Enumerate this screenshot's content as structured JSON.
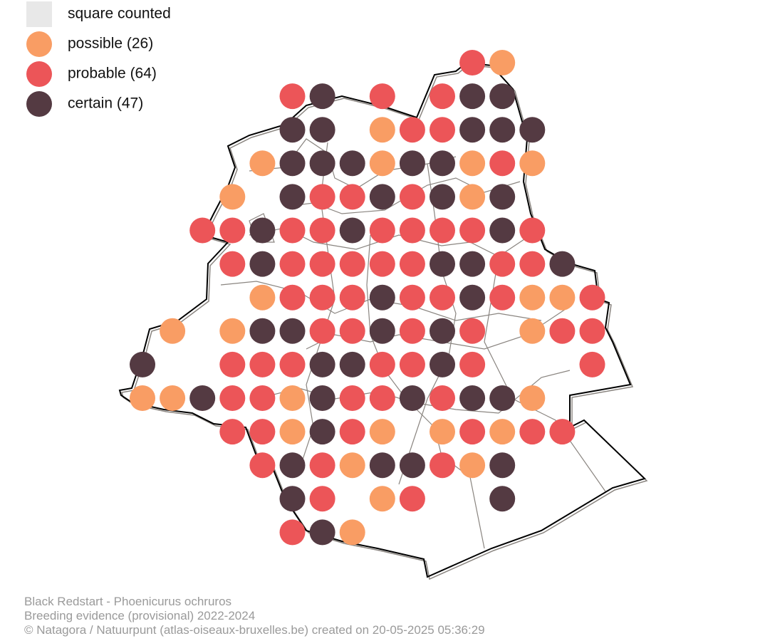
{
  "legend": {
    "items": [
      {
        "label": "square counted",
        "color": "#e8e8e8"
      },
      {
        "label": "possible (26)",
        "color": "#f99d64"
      },
      {
        "label": "probable (64)",
        "color": "#ec5558"
      },
      {
        "label": "certain (47)",
        "color": "#543a42"
      }
    ]
  },
  "footer": {
    "lines": [
      "Black Redstart - Phoenicurus ochruros",
      "Breeding evidence (provisional) 2022-2024",
      "© Natagora / Natuurpunt (atlas-oiseaux-bruxelles.be) created on 20-05-2025 05:36:29"
    ]
  }
}
